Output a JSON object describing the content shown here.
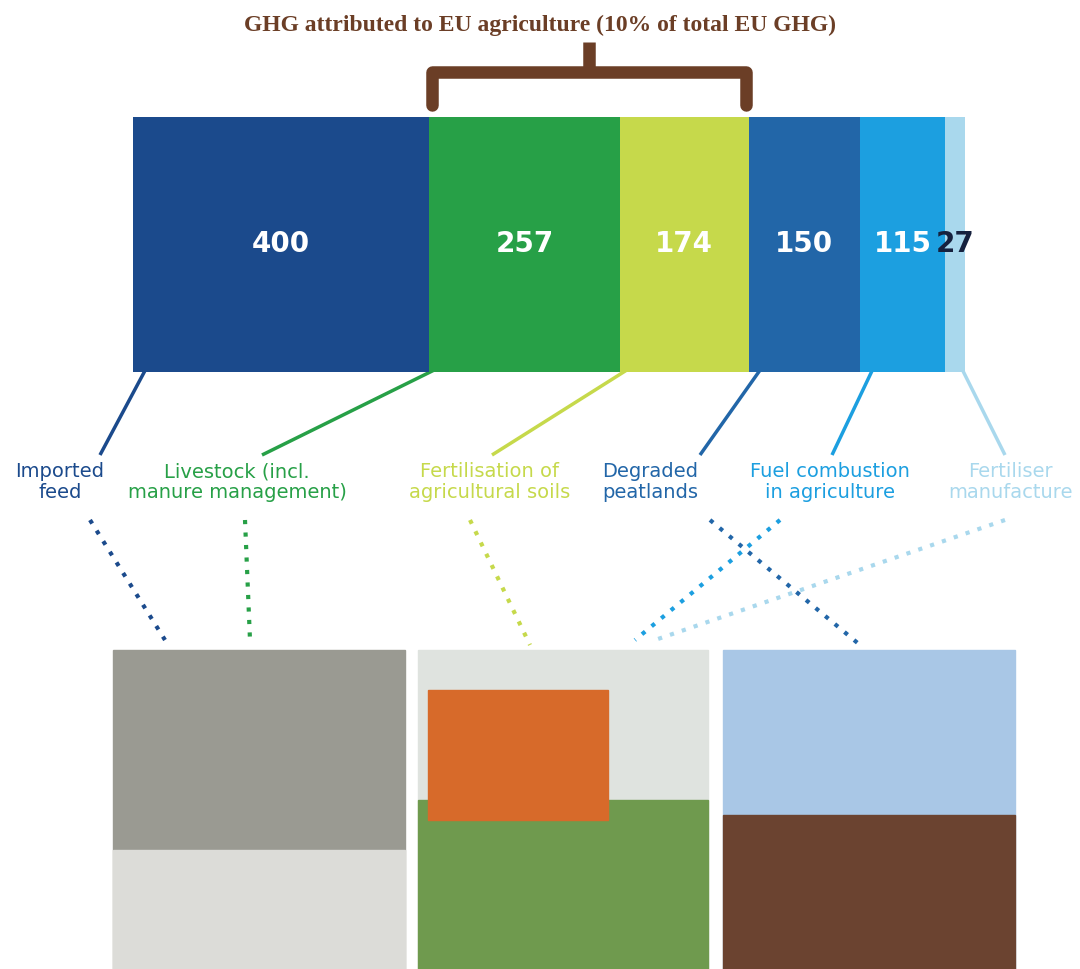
{
  "chart_data": {
    "type": "bar",
    "title": "GHG attributed to EU agriculture (10% of total EU GHG)",
    "orientation": "horizontal",
    "stacked": true,
    "data_labels": true,
    "tick_labels": false,
    "categories": [
      null
    ],
    "xlim": [
      0,
      1123
    ],
    "xticks": [],
    "series": [
      {
        "name": "Imported\nfeed",
        "color": "#1b4a8c",
        "values": [
          400
        ]
      },
      {
        "name": "Livestock (incl.\nmanure management)",
        "color": "#27a047",
        "values": [
          257
        ]
      },
      {
        "name": "Fertilisation of\nagricultural soils",
        "color": "#c6d94b",
        "values": [
          174
        ]
      },
      {
        "name": "Degraded\npeatlands",
        "color": "#2266a8",
        "values": [
          150
        ]
      },
      {
        "name": "Fuel combustion\nin agriculture",
        "color": "#1c9fe0",
        "values": [
          115
        ]
      },
      {
        "name": "Fertiliser\nmanufacture",
        "color": "#a9d8ed",
        "values": [
          27
        ]
      }
    ]
  }
}
